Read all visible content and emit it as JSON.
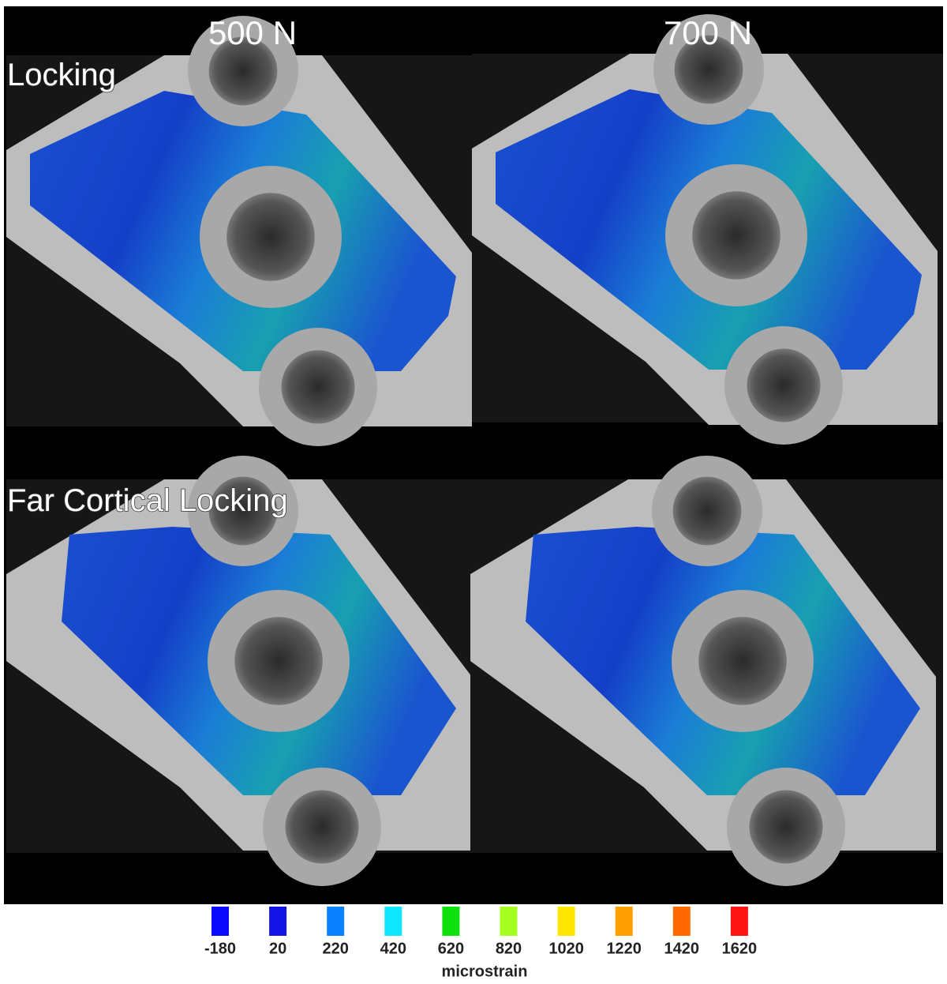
{
  "columns": [
    "500 N",
    "700 N"
  ],
  "rows": [
    "Locking",
    "Far Cortical Locking"
  ],
  "legend": {
    "title": "microstrain",
    "items": [
      {
        "value": -180,
        "color": "#0a0aff"
      },
      {
        "value": 20,
        "color": "#1414e6"
      },
      {
        "value": 220,
        "color": "#0a82ff"
      },
      {
        "value": 420,
        "color": "#10e6ff"
      },
      {
        "value": 620,
        "color": "#10e010"
      },
      {
        "value": 820,
        "color": "#a6ff22"
      },
      {
        "value": 1020,
        "color": "#ffe600"
      },
      {
        "value": 1220,
        "color": "#ffa000"
      },
      {
        "value": 1420,
        "color": "#ff6a00"
      },
      {
        "value": 1620,
        "color": "#ff1414"
      }
    ]
  }
}
